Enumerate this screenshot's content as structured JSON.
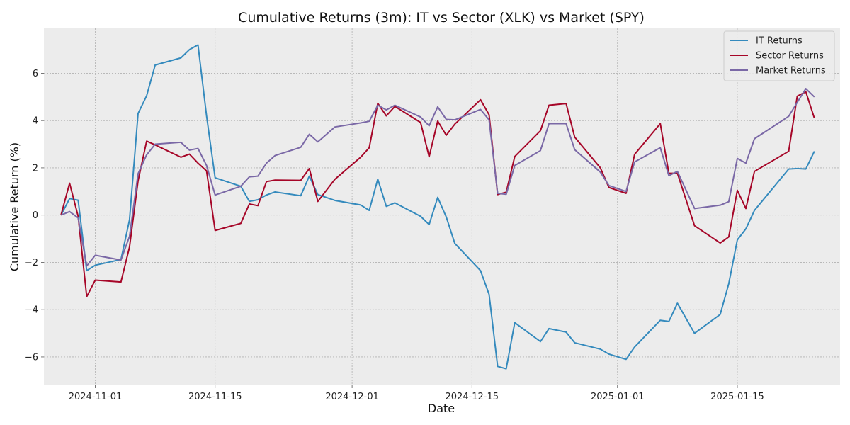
{
  "chart_data": {
    "type": "line",
    "title": "Cumulative Returns (3m): IT vs Sector (XLK) vs Market (SPY)",
    "xlabel": "Date",
    "ylabel": "Cumulative Return (%)",
    "x_axis_type": "date",
    "xlim": [
      "2024-10-26",
      "2025-01-27"
    ],
    "ylim": [
      -7.2,
      7.9
    ],
    "x_ticks": [
      "2024-11-01",
      "2024-11-15",
      "2024-12-01",
      "2024-12-15",
      "2025-01-01",
      "2025-01-15"
    ],
    "y_ticks": [
      -6,
      -4,
      -2,
      0,
      2,
      4,
      6
    ],
    "grid": true,
    "legend_position": "top-right",
    "series": [
      {
        "name": "IT Returns",
        "color": "#348abd",
        "points": [
          [
            "2024-10-28",
            0.0
          ],
          [
            "2024-10-29",
            0.7
          ],
          [
            "2024-10-30",
            0.63
          ],
          [
            "2024-10-31",
            -2.35
          ],
          [
            "2024-11-01",
            -2.12
          ],
          [
            "2024-11-04",
            -1.88
          ],
          [
            "2024-11-05",
            -0.2
          ],
          [
            "2024-11-06",
            4.3
          ],
          [
            "2024-11-07",
            5.05
          ],
          [
            "2024-11-08",
            6.35
          ],
          [
            "2024-11-11",
            6.65
          ],
          [
            "2024-11-12",
            7.0
          ],
          [
            "2024-11-13",
            7.2
          ],
          [
            "2024-11-14",
            4.2
          ],
          [
            "2024-11-15",
            1.58
          ],
          [
            "2024-11-18",
            1.22
          ],
          [
            "2024-11-19",
            0.58
          ],
          [
            "2024-11-20",
            0.65
          ],
          [
            "2024-11-21",
            0.85
          ],
          [
            "2024-11-22",
            0.98
          ],
          [
            "2024-11-25",
            0.82
          ],
          [
            "2024-11-26",
            1.65
          ],
          [
            "2024-11-27",
            0.87
          ],
          [
            "2024-11-29",
            0.62
          ],
          [
            "2024-12-02",
            0.43
          ],
          [
            "2024-12-03",
            0.2
          ],
          [
            "2024-12-04",
            1.52
          ],
          [
            "2024-12-05",
            0.37
          ],
          [
            "2024-12-06",
            0.52
          ],
          [
            "2024-12-09",
            -0.05
          ],
          [
            "2024-12-10",
            -0.4
          ],
          [
            "2024-12-11",
            0.75
          ],
          [
            "2024-12-12",
            -0.08
          ],
          [
            "2024-12-13",
            -1.2
          ],
          [
            "2024-12-16",
            -2.35
          ],
          [
            "2024-12-17",
            -3.35
          ],
          [
            "2024-12-18",
            -6.4
          ],
          [
            "2024-12-19",
            -6.5
          ],
          [
            "2024-12-20",
            -4.55
          ],
          [
            "2024-12-23",
            -5.35
          ],
          [
            "2024-12-24",
            -4.8
          ],
          [
            "2024-12-26",
            -4.95
          ],
          [
            "2024-12-27",
            -5.4
          ],
          [
            "2024-12-30",
            -5.67
          ],
          [
            "2024-12-31",
            -5.88
          ],
          [
            "2025-01-02",
            -6.1
          ],
          [
            "2025-01-03",
            -5.58
          ],
          [
            "2025-01-06",
            -4.45
          ],
          [
            "2025-01-07",
            -4.5
          ],
          [
            "2025-01-08",
            -3.73
          ],
          [
            "2025-01-10",
            -5.0
          ],
          [
            "2025-01-13",
            -4.2
          ],
          [
            "2025-01-14",
            -2.9
          ],
          [
            "2025-01-15",
            -1.05
          ],
          [
            "2025-01-16",
            -0.58
          ],
          [
            "2025-01-17",
            0.2
          ],
          [
            "2025-01-21",
            1.95
          ],
          [
            "2025-01-22",
            1.97
          ],
          [
            "2025-01-23",
            1.95
          ],
          [
            "2025-01-24",
            2.7
          ]
        ]
      },
      {
        "name": "Sector Returns",
        "color": "#a60628",
        "points": [
          [
            "2024-10-28",
            0.0
          ],
          [
            "2024-10-29",
            1.35
          ],
          [
            "2024-10-30",
            -0.05
          ],
          [
            "2024-10-31",
            -3.45
          ],
          [
            "2024-11-01",
            -2.75
          ],
          [
            "2024-11-04",
            -2.83
          ],
          [
            "2024-11-05",
            -1.35
          ],
          [
            "2024-11-06",
            1.45
          ],
          [
            "2024-11-07",
            3.13
          ],
          [
            "2024-11-08",
            2.97
          ],
          [
            "2024-11-11",
            2.45
          ],
          [
            "2024-11-12",
            2.58
          ],
          [
            "2024-11-13",
            2.2
          ],
          [
            "2024-11-14",
            1.87
          ],
          [
            "2024-11-15",
            -0.65
          ],
          [
            "2024-11-18",
            -0.35
          ],
          [
            "2024-11-19",
            0.47
          ],
          [
            "2024-11-20",
            0.4
          ],
          [
            "2024-11-21",
            1.42
          ],
          [
            "2024-11-22",
            1.48
          ],
          [
            "2024-11-25",
            1.47
          ],
          [
            "2024-11-26",
            1.97
          ],
          [
            "2024-11-27",
            0.58
          ],
          [
            "2024-11-29",
            1.52
          ],
          [
            "2024-12-02",
            2.45
          ],
          [
            "2024-12-03",
            2.85
          ],
          [
            "2024-12-04",
            4.73
          ],
          [
            "2024-12-05",
            4.2
          ],
          [
            "2024-12-06",
            4.6
          ],
          [
            "2024-12-09",
            3.92
          ],
          [
            "2024-12-10",
            2.47
          ],
          [
            "2024-12-11",
            3.98
          ],
          [
            "2024-12-12",
            3.38
          ],
          [
            "2024-12-13",
            3.85
          ],
          [
            "2024-12-16",
            4.88
          ],
          [
            "2024-12-17",
            4.25
          ],
          [
            "2024-12-18",
            0.87
          ],
          [
            "2024-12-19",
            0.97
          ],
          [
            "2024-12-20",
            2.48
          ],
          [
            "2024-12-23",
            3.57
          ],
          [
            "2024-12-24",
            4.65
          ],
          [
            "2024-12-26",
            4.72
          ],
          [
            "2024-12-27",
            3.3
          ],
          [
            "2024-12-30",
            2.0
          ],
          [
            "2024-12-31",
            1.17
          ],
          [
            "2025-01-02",
            0.92
          ],
          [
            "2025-01-03",
            2.57
          ],
          [
            "2025-01-06",
            3.87
          ],
          [
            "2025-01-07",
            1.77
          ],
          [
            "2025-01-08",
            1.77
          ],
          [
            "2025-01-10",
            -0.45
          ],
          [
            "2025-01-13",
            -1.18
          ],
          [
            "2025-01-14",
            -0.92
          ],
          [
            "2025-01-15",
            1.05
          ],
          [
            "2025-01-16",
            0.28
          ],
          [
            "2025-01-17",
            1.85
          ],
          [
            "2025-01-21",
            2.7
          ],
          [
            "2025-01-22",
            5.03
          ],
          [
            "2025-01-23",
            5.22
          ],
          [
            "2025-01-24",
            4.1
          ]
        ]
      },
      {
        "name": "Market Returns",
        "color": "#7a68a6",
        "points": [
          [
            "2024-10-28",
            0.0
          ],
          [
            "2024-10-29",
            0.15
          ],
          [
            "2024-10-30",
            -0.12
          ],
          [
            "2024-10-31",
            -2.15
          ],
          [
            "2024-11-01",
            -1.7
          ],
          [
            "2024-11-04",
            -1.9
          ],
          [
            "2024-11-05",
            -0.9
          ],
          [
            "2024-11-06",
            1.75
          ],
          [
            "2024-11-07",
            2.55
          ],
          [
            "2024-11-08",
            3.0
          ],
          [
            "2024-11-11",
            3.08
          ],
          [
            "2024-11-12",
            2.75
          ],
          [
            "2024-11-13",
            2.82
          ],
          [
            "2024-11-14",
            2.1
          ],
          [
            "2024-11-15",
            0.85
          ],
          [
            "2024-11-18",
            1.22
          ],
          [
            "2024-11-19",
            1.62
          ],
          [
            "2024-11-20",
            1.65
          ],
          [
            "2024-11-21",
            2.2
          ],
          [
            "2024-11-22",
            2.52
          ],
          [
            "2024-11-25",
            2.87
          ],
          [
            "2024-11-26",
            3.42
          ],
          [
            "2024-11-27",
            3.1
          ],
          [
            "2024-11-29",
            3.73
          ],
          [
            "2024-12-02",
            3.9
          ],
          [
            "2024-12-03",
            3.97
          ],
          [
            "2024-12-04",
            4.65
          ],
          [
            "2024-12-05",
            4.45
          ],
          [
            "2024-12-06",
            4.65
          ],
          [
            "2024-12-09",
            4.15
          ],
          [
            "2024-12-10",
            3.78
          ],
          [
            "2024-12-11",
            4.58
          ],
          [
            "2024-12-12",
            4.05
          ],
          [
            "2024-12-13",
            4.03
          ],
          [
            "2024-12-16",
            4.47
          ],
          [
            "2024-12-17",
            4.03
          ],
          [
            "2024-12-18",
            0.92
          ],
          [
            "2024-12-19",
            0.88
          ],
          [
            "2024-12-20",
            2.1
          ],
          [
            "2024-12-23",
            2.73
          ],
          [
            "2024-12-24",
            3.87
          ],
          [
            "2024-12-26",
            3.87
          ],
          [
            "2024-12-27",
            2.77
          ],
          [
            "2024-12-30",
            1.82
          ],
          [
            "2024-12-31",
            1.25
          ],
          [
            "2025-01-02",
            1.0
          ],
          [
            "2025-01-03",
            2.25
          ],
          [
            "2025-01-06",
            2.85
          ],
          [
            "2025-01-07",
            1.67
          ],
          [
            "2025-01-08",
            1.85
          ],
          [
            "2025-01-10",
            0.28
          ],
          [
            "2025-01-13",
            0.42
          ],
          [
            "2025-01-14",
            0.57
          ],
          [
            "2025-01-15",
            2.4
          ],
          [
            "2025-01-16",
            2.2
          ],
          [
            "2025-01-17",
            3.23
          ],
          [
            "2025-01-21",
            4.18
          ],
          [
            "2025-01-22",
            4.77
          ],
          [
            "2025-01-23",
            5.35
          ],
          [
            "2025-01-24",
            5.0
          ]
        ]
      }
    ]
  }
}
